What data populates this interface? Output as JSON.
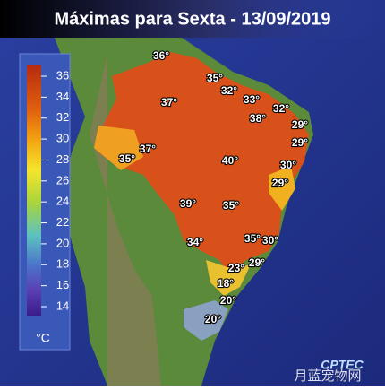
{
  "header": {
    "title": "Máximas para Sexta - 13/09/2019"
  },
  "legend": {
    "ticks": [
      36,
      34,
      32,
      30,
      28,
      26,
      24,
      22,
      20,
      18,
      16,
      14
    ],
    "unit": "°C"
  },
  "temperatures": [
    "36°",
    "35°",
    "32°",
    "33°",
    "32°",
    "38°",
    "29°",
    "37°",
    "29°",
    "35°",
    "37°",
    "40°",
    "30°",
    "29°",
    "39°",
    "35°",
    "34°",
    "35°",
    "30°",
    "23°",
    "29°",
    "18°",
    "20°",
    "20°"
  ],
  "logo": "CPTEC",
  "watermark": "月蓝宠物网"
}
